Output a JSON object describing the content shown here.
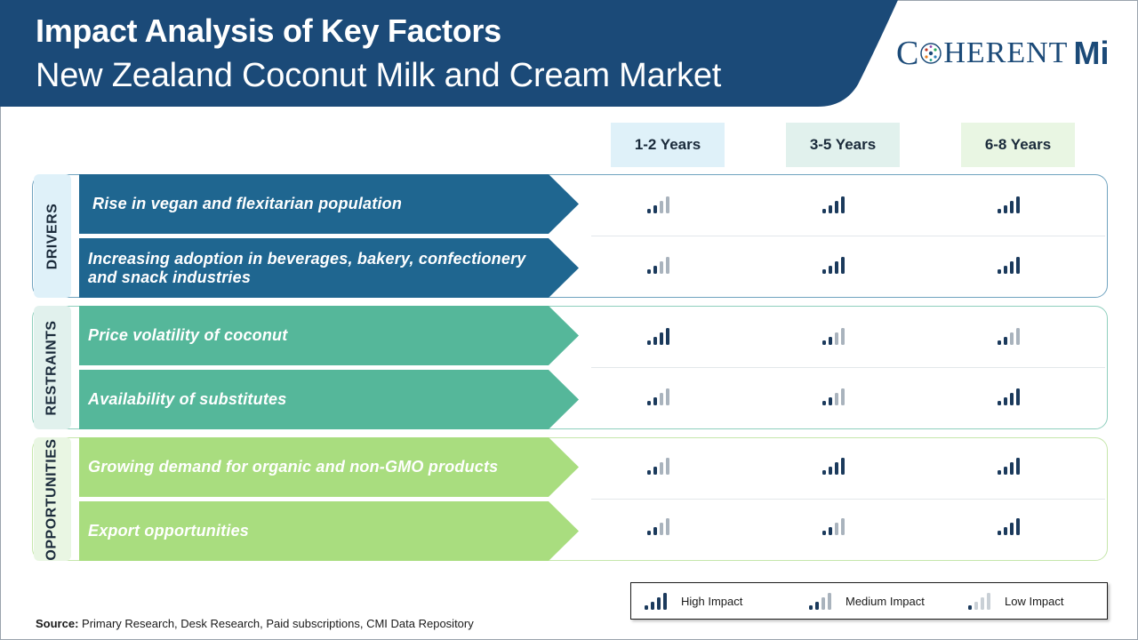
{
  "header": {
    "title_line1": "Impact Analysis of Key Factors",
    "title_line2": "New Zealand Coconut Milk and Cream Market",
    "colors": {
      "navy": "#1b4a78",
      "white": "#ffffff"
    }
  },
  "logo": {
    "text_c": "C",
    "text_rest": "HERENT",
    "text_mi": "Mi"
  },
  "columns": [
    "1-2 Years",
    "3-5 Years",
    "6-8 Years"
  ],
  "column_colors": [
    "#dff1f9",
    "#e1f1ed",
    "#e9f6e3"
  ],
  "groups": [
    {
      "label": "DRIVERS",
      "arrow_color": "#1f6690",
      "border_color": "#6fa3bf",
      "label_bg": "#dff1f9",
      "rows": [
        {
          "text": "Rise in vegan and flexitarian population",
          "impact": [
            "medium",
            "high",
            "high"
          ]
        },
        {
          "text": "Increasing adoption in beverages, bakery, confectionery and snack industries",
          "impact": [
            "medium",
            "high",
            "high"
          ]
        }
      ]
    },
    {
      "label": "RESTRAINTS",
      "arrow_color": "#55b79a",
      "border_color": "#8fcfbd",
      "label_bg": "#e1f1ed",
      "rows": [
        {
          "text": "Price volatility of coconut",
          "impact": [
            "high",
            "medium",
            "medium"
          ]
        },
        {
          "text": "Availability of substitutes",
          "impact": [
            "medium",
            "medium",
            "high"
          ]
        }
      ]
    },
    {
      "label": "OPPORTUNITIES",
      "arrow_color": "#a9dd7f",
      "border_color": "#c5e6ab",
      "label_bg": "#e9f6e3",
      "rows": [
        {
          "text": "Growing demand for organic and non-GMO products",
          "impact": [
            "medium",
            "high",
            "high"
          ]
        },
        {
          "text": "Export opportunities",
          "impact": [
            "medium",
            "medium",
            "high"
          ]
        }
      ]
    }
  ],
  "legend": {
    "high": "High Impact",
    "medium": "Medium Impact",
    "low": "Low Impact"
  },
  "impact_colors": {
    "dark": "#1b3a5c",
    "light": "#a9b3bd",
    "faint": "#c9d0d6"
  },
  "source": {
    "label": "Source:",
    "text": "Primary Research, Desk Research, Paid subscriptions, CMI Data Repository"
  }
}
